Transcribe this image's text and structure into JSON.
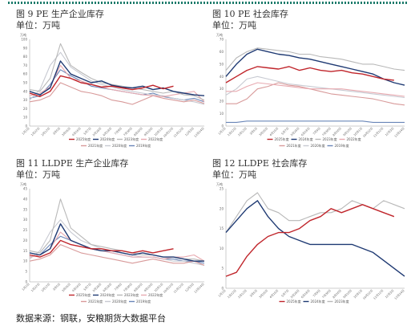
{
  "figures": [
    {
      "caption": "图 9 PE 生产企业库存",
      "unit": "单位：万吨"
    },
    {
      "caption": "图 10 PE 社会库存",
      "unit": "单位：万吨"
    },
    {
      "caption": "图 11 LLDPE 生产企业库存",
      "unit": "单位：万吨"
    },
    {
      "caption": "图 12 LLDPE 社会库存",
      "unit": "单位：万吨"
    }
  ],
  "source": "数据来源：钢联，安粮期货大数据平台",
  "chart_data": [
    {
      "type": "line",
      "unit_label": "万吨",
      "ylim": [
        0,
        100
      ],
      "yticks": [
        0,
        10,
        20,
        30,
        40,
        50,
        60,
        70,
        80,
        90,
        100
      ],
      "x": [
        "1月1日",
        "1月22日",
        "2月12日",
        "3月5日",
        "3月26日",
        "4月16日",
        "5月7日",
        "5月28日",
        "6月18日",
        "7月9日",
        "7月30日",
        "8月20日",
        "9月10日",
        "10月1日",
        "10月22日",
        "11月12日",
        "12月3日",
        "12月24日"
      ],
      "series": [
        {
          "name": "2025年度",
          "color": "#c0252b",
          "width": 1.4,
          "values": [
            38,
            34,
            40,
            58,
            55,
            50,
            48,
            45,
            46,
            44,
            42,
            44,
            47,
            43,
            46,
            null,
            null,
            null
          ]
        },
        {
          "name": "2024年度",
          "color": "#1f3a73",
          "width": 1.4,
          "values": [
            40,
            36,
            44,
            75,
            60,
            55,
            50,
            52,
            47,
            45,
            44,
            46,
            42,
            44,
            40,
            38,
            36,
            35
          ]
        },
        {
          "name": "2023年度",
          "color": "#b8b8b8",
          "width": 1.1,
          "values": [
            42,
            40,
            55,
            95,
            70,
            62,
            55,
            50,
            48,
            46,
            44,
            42,
            40,
            38,
            40,
            36,
            35,
            30
          ]
        },
        {
          "name": "2022年度",
          "color": "#e8aab0",
          "width": 1.1,
          "values": [
            35,
            38,
            45,
            70,
            55,
            52,
            48,
            45,
            42,
            40,
            38,
            36,
            35,
            34,
            36,
            38,
            40,
            28
          ]
        },
        {
          "name": "2021年度",
          "color": "#d89a9a",
          "width": 1.1,
          "values": [
            28,
            30,
            35,
            50,
            45,
            40,
            38,
            35,
            30,
            28,
            25,
            30,
            35,
            32,
            30,
            28,
            30,
            26
          ]
        },
        {
          "name": "2020年度",
          "color": "#c8cad2",
          "width": 1.1,
          "values": [
            30,
            42,
            70,
            85,
            68,
            60,
            52,
            48,
            45,
            42,
            40,
            38,
            36,
            35,
            32,
            30,
            28,
            25
          ]
        },
        {
          "name": "2019年度",
          "color": "#6a86b8",
          "width": 1.1,
          "values": [
            32,
            35,
            48,
            65,
            58,
            52,
            46,
            44,
            42,
            40,
            38,
            36,
            38,
            34,
            32,
            30,
            32,
            28
          ]
        }
      ]
    },
    {
      "type": "line",
      "unit_label": "万吨",
      "ylim": [
        0,
        70
      ],
      "yticks": [
        0,
        10,
        20,
        30,
        40,
        50,
        60,
        70
      ],
      "x": [
        "1月1日",
        "1月22日",
        "2月12日",
        "3月5日",
        "3月26日",
        "4月16日",
        "5月7日",
        "5月28日",
        "6月18日",
        "7月9日",
        "7月30日",
        "8月20日",
        "9月10日",
        "10月1日",
        "10月22日",
        "11月12日",
        "12月3日",
        "12月24日"
      ],
      "series": [
        {
          "name": "2025年度",
          "color": "#c0252b",
          "width": 1.4,
          "values": [
            35,
            40,
            45,
            48,
            47,
            46,
            48,
            45,
            47,
            45,
            44,
            45,
            43,
            42,
            40,
            38,
            37,
            null
          ]
        },
        {
          "name": "2024年度",
          "color": "#1f3a73",
          "width": 1.4,
          "values": [
            40,
            50,
            58,
            62,
            60,
            58,
            57,
            55,
            54,
            52,
            50,
            48,
            46,
            44,
            42,
            38,
            35,
            33
          ]
        },
        {
          "name": "2023年度",
          "color": "#b8b8b8",
          "width": 1.1,
          "values": [
            45,
            55,
            60,
            63,
            62,
            61,
            60,
            58,
            58,
            56,
            55,
            54,
            52,
            50,
            50,
            48,
            46,
            45
          ]
        },
        {
          "name": "2022年度",
          "color": "#e8aab0",
          "width": 1.1,
          "values": [
            28,
            28,
            32,
            35,
            34,
            33,
            32,
            31,
            30,
            30,
            30,
            30,
            29,
            28,
            27,
            26,
            25,
            24
          ]
        },
        {
          "name": "2021年度",
          "color": "#d89a9a",
          "width": 1.1,
          "values": [
            18,
            18,
            22,
            30,
            32,
            35,
            33,
            32,
            30,
            28,
            26,
            25,
            24,
            23,
            22,
            20,
            18,
            17
          ]
        },
        {
          "name": "2020年度",
          "color": "#c8cad2",
          "width": 1.1,
          "values": [
            25,
            30,
            38,
            40,
            38,
            36,
            34,
            33,
            32,
            31,
            30,
            29,
            28,
            27,
            26,
            25,
            24,
            23
          ]
        },
        {
          "name": "2019年度",
          "color": "#6a86b8",
          "width": 1.1,
          "values": [
            3,
            3,
            4,
            4,
            4,
            4,
            4,
            4,
            4,
            4,
            4,
            4,
            4,
            4,
            3,
            3,
            3,
            3
          ]
        }
      ]
    },
    {
      "type": "line",
      "unit_label": "万吨",
      "ylim": [
        0,
        45
      ],
      "yticks": [
        0,
        5,
        10,
        15,
        20,
        25,
        30,
        35,
        40,
        45
      ],
      "x": [
        "1月1日",
        "1月22日",
        "2月12日",
        "3月5日",
        "3月26日",
        "4月16日",
        "5月7日",
        "5月28日",
        "6月18日",
        "7月9日",
        "7月30日",
        "8月20日",
        "9月10日",
        "10月1日",
        "10月22日",
        "11月12日",
        "12月3日",
        "12月24日"
      ],
      "series": [
        {
          "name": "2025年度",
          "color": "#c0252b",
          "width": 1.4,
          "values": [
            13,
            12,
            14,
            20,
            18,
            17,
            16,
            16,
            15,
            15,
            14,
            15,
            14,
            15,
            16,
            null,
            null,
            null
          ]
        },
        {
          "name": "2024年度",
          "color": "#1f3a73",
          "width": 1.4,
          "values": [
            14,
            13,
            16,
            28,
            20,
            18,
            16,
            15,
            15,
            14,
            13,
            14,
            13,
            12,
            12,
            11,
            10,
            10
          ]
        },
        {
          "name": "2023年度",
          "color": "#b8b8b8",
          "width": 1.1,
          "values": [
            15,
            14,
            20,
            40,
            26,
            22,
            18,
            17,
            16,
            15,
            14,
            13,
            13,
            12,
            12,
            11,
            11,
            10
          ]
        },
        {
          "name": "2022年度",
          "color": "#e8aab0",
          "width": 1.1,
          "values": [
            12,
            13,
            16,
            24,
            20,
            18,
            16,
            15,
            14,
            13,
            12,
            12,
            12,
            11,
            12,
            12,
            13,
            10
          ]
        },
        {
          "name": "2021年度",
          "color": "#d89a9a",
          "width": 1.1,
          "values": [
            10,
            11,
            13,
            18,
            16,
            14,
            13,
            12,
            11,
            10,
            9,
            10,
            11,
            10,
            9,
            9,
            10,
            8
          ]
        },
        {
          "name": "2020年度",
          "color": "#c8cad2",
          "width": 1.1,
          "values": [
            11,
            15,
            24,
            30,
            24,
            20,
            18,
            16,
            15,
            14,
            13,
            12,
            12,
            11,
            10,
            10,
            9,
            8
          ]
        },
        {
          "name": "2019年度",
          "color": "#6a86b8",
          "width": 1.1,
          "values": [
            12,
            13,
            18,
            22,
            20,
            18,
            16,
            15,
            14,
            13,
            12,
            12,
            12,
            11,
            11,
            10,
            10,
            9
          ]
        }
      ]
    },
    {
      "type": "line",
      "unit_label": "万吨",
      "ylim": [
        0,
        25
      ],
      "yticks": [
        0,
        5,
        10,
        15,
        20,
        25
      ],
      "x": [
        "1月1日",
        "1月22日",
        "2月12日",
        "3月5日",
        "3月26日",
        "4月16日",
        "5月7日",
        "5月28日",
        "6月18日",
        "7月9日",
        "7月30日",
        "8月20日",
        "9月10日",
        "10月1日",
        "10月22日",
        "11月12日",
        "12月3日",
        "12月24日"
      ],
      "series": [
        {
          "name": "2025年度",
          "color": "#c0252b",
          "width": 1.4,
          "values": [
            3,
            4,
            8,
            11,
            13,
            14,
            14,
            15,
            17,
            18,
            20,
            19,
            20,
            21,
            20,
            19,
            18,
            null
          ]
        },
        {
          "name": "2024年度",
          "color": "#1f3a73",
          "width": 1.4,
          "values": [
            14,
            17,
            20,
            22,
            18,
            15,
            13,
            12,
            11,
            11,
            11,
            11,
            11,
            10,
            9,
            7,
            5,
            3
          ]
        },
        {
          "name": "2023年度",
          "color": "#b8b8b8",
          "width": 1.1,
          "values": [
            14,
            18,
            22,
            24,
            20,
            19,
            17,
            17,
            18,
            19,
            19,
            20,
            22,
            21,
            20,
            22,
            21,
            20
          ]
        }
      ]
    }
  ]
}
